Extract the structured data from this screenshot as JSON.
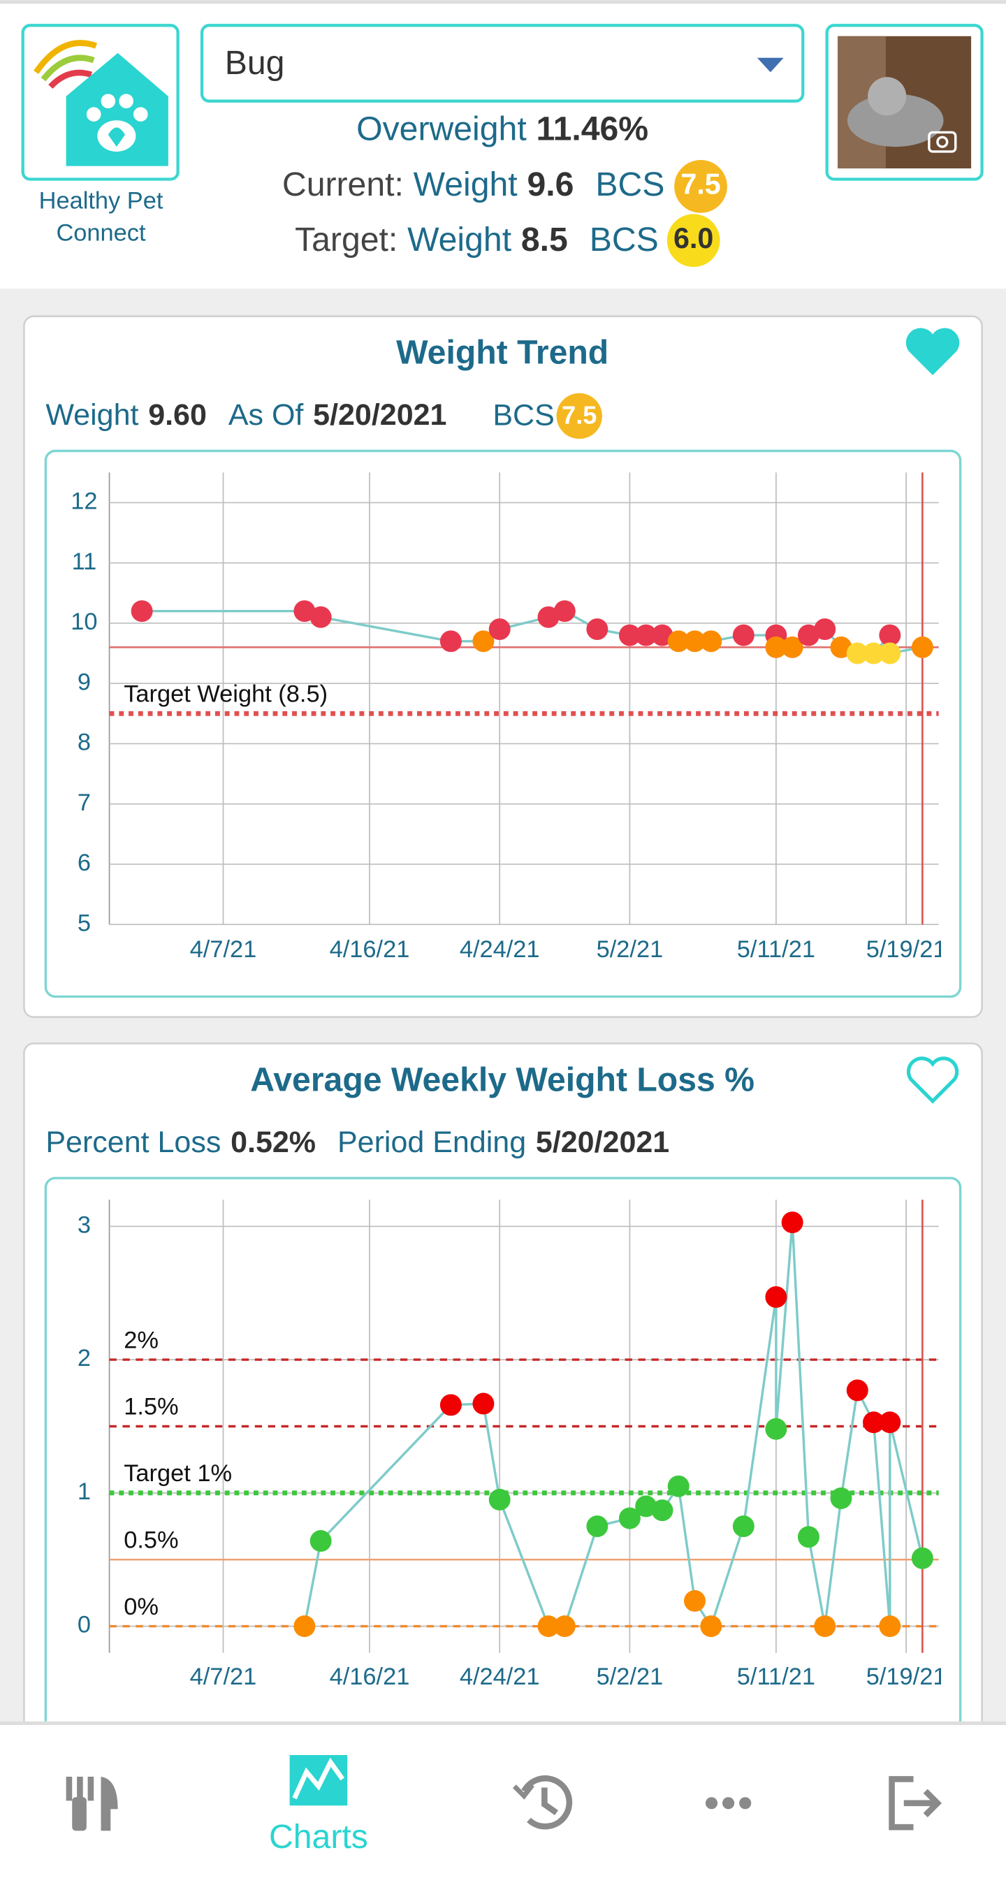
{
  "header": {
    "app_name_lines": [
      "Healthy Pet",
      "Connect"
    ],
    "pet_name": "Bug",
    "status": {
      "label": "Overweight",
      "value": "11.46%"
    },
    "current": {
      "label": "Current:",
      "weight_label": "Weight",
      "weight": "9.6",
      "bcs_label": "BCS",
      "bcs": "7.5"
    },
    "target": {
      "label": "Target:",
      "weight_label": "Weight",
      "weight": "8.5",
      "bcs_label": "BCS",
      "bcs": "6.0"
    }
  },
  "cards": [
    {
      "stats": [
        {
          "label": "Weight",
          "value": "9.60"
        },
        {
          "label": "As Of",
          "value": "5/20/2021"
        }
      ],
      "bcs_label": "BCS",
      "bcs": "7.5"
    },
    {
      "stats": [
        {
          "label": "Percent Loss",
          "value": "0.52%"
        },
        {
          "label": "Period Ending",
          "value": "5/20/2021"
        }
      ]
    }
  ],
  "chart_data": [
    {
      "type": "line",
      "title": "Weight Trend",
      "x": [
        "4/2/21",
        "4/12/21",
        "4/13/21",
        "4/21/21",
        "4/23/21",
        "4/24/21",
        "4/27/21",
        "4/28/21",
        "4/30/21",
        "5/2/21",
        "5/3/21",
        "5/4/21",
        "5/5/21",
        "5/6/21",
        "5/7/21",
        "5/9/21",
        "5/11/21",
        "5/11/21",
        "5/12/21",
        "5/13/21",
        "5/14/21",
        "5/15/21",
        "5/16/21",
        "5/17/21",
        "5/18/21",
        "5/18/21",
        "5/20/21"
      ],
      "values": [
        10.2,
        10.2,
        10.1,
        9.7,
        9.7,
        9.9,
        10.1,
        10.2,
        9.9,
        9.8,
        9.8,
        9.8,
        9.7,
        9.7,
        9.7,
        9.8,
        9.8,
        9.6,
        9.6,
        9.8,
        9.9,
        9.6,
        9.5,
        9.5,
        9.8,
        9.5,
        9.6
      ],
      "point_colors": [
        "#e8384f",
        "#e8384f",
        "#e8384f",
        "#e8384f",
        "#fb8c00",
        "#e8384f",
        "#e8384f",
        "#e8384f",
        "#e8384f",
        "#e8384f",
        "#e8384f",
        "#e8384f",
        "#fb8c00",
        "#fb8c00",
        "#fb8c00",
        "#e8384f",
        "#e8384f",
        "#fb8c00",
        "#fb8c00",
        "#e8384f",
        "#e8384f",
        "#fb8c00",
        "#fdd835",
        "#fdd835",
        "#e8384f",
        "#fdd835",
        "#fb8c00"
      ],
      "line_color": "#7ecbc9",
      "xlim": [
        "3/31/21",
        "5/21/21"
      ],
      "xticks": [
        "4/7/21",
        "4/16/21",
        "4/24/21",
        "5/2/21",
        "5/11/21",
        "5/19/21"
      ],
      "ylim": [
        5,
        12.5
      ],
      "yticks": [
        5,
        6,
        7,
        8,
        9,
        10,
        11,
        12
      ],
      "grid": true,
      "ref_lines": [
        {
          "value": 8.5,
          "label": "Target Weight (8.5)",
          "color": "#e05050",
          "style": "dotted"
        },
        {
          "value": 9.6,
          "color": "#e07070",
          "style": "solid"
        }
      ],
      "vline": {
        "x": "5/20/21",
        "color": "#d9534f"
      }
    },
    {
      "type": "line",
      "title": "Average Weekly Weight Loss %",
      "x": [
        "4/12/21",
        "4/13/21",
        "4/21/21",
        "4/23/21",
        "4/24/21",
        "4/27/21",
        "4/28/21",
        "4/30/21",
        "5/2/21",
        "5/3/21",
        "5/4/21",
        "5/5/21",
        "5/6/21",
        "5/7/21",
        "5/9/21",
        "5/11/21",
        "5/11/21",
        "5/12/21",
        "5/13/21",
        "5/14/21",
        "5/15/21",
        "5/16/21",
        "5/17/21",
        "5/18/21",
        "5/18/21",
        "5/20/21"
      ],
      "values": [
        0,
        0.64,
        1.66,
        1.67,
        0.95,
        0,
        0,
        0.75,
        0.81,
        0.9,
        0.87,
        1.05,
        0.19,
        0,
        0.75,
        2.47,
        1.48,
        3.03,
        0.67,
        0,
        0.96,
        1.77,
        1.53,
        0,
        1.53,
        0.51
      ],
      "point_colors": [
        "#fb8c00",
        "#3cc83c",
        "#f00000",
        "#f00000",
        "#3cc83c",
        "#fb8c00",
        "#fb8c00",
        "#3cc83c",
        "#3cc83c",
        "#3cc83c",
        "#3cc83c",
        "#3cc83c",
        "#fb8c00",
        "#fb8c00",
        "#3cc83c",
        "#f00000",
        "#3cc83c",
        "#f00000",
        "#3cc83c",
        "#fb8c00",
        "#3cc83c",
        "#f00000",
        "#f00000",
        "#fb8c00",
        "#f00000",
        "#3cc83c"
      ],
      "line_color": "#7ecbc9",
      "xlim": [
        "3/31/21",
        "5/21/21"
      ],
      "xticks": [
        "4/7/21",
        "4/16/21",
        "4/24/21",
        "5/2/21",
        "5/11/21",
        "5/19/21"
      ],
      "ylim": [
        -0.2,
        3.2
      ],
      "yticks": [
        0,
        1,
        2,
        3
      ],
      "grid": true,
      "ref_lines": [
        {
          "value": 2,
          "label": "2%",
          "color": "#c62828",
          "style": "dashed"
        },
        {
          "value": 1.5,
          "label": "1.5%",
          "color": "#c62828",
          "style": "dashed"
        },
        {
          "value": 1,
          "label": "Target 1%",
          "color": "#3cc83c",
          "style": "dotted"
        },
        {
          "value": 0.5,
          "label": "0.5%",
          "color": "#f0a070",
          "style": "solid"
        },
        {
          "value": 0,
          "label": "0%",
          "color": "#f08c30",
          "style": "dashed"
        }
      ],
      "vline": {
        "x": "5/20/21",
        "color": "#d9534f"
      }
    }
  ],
  "nav": {
    "active_label": "Charts"
  }
}
